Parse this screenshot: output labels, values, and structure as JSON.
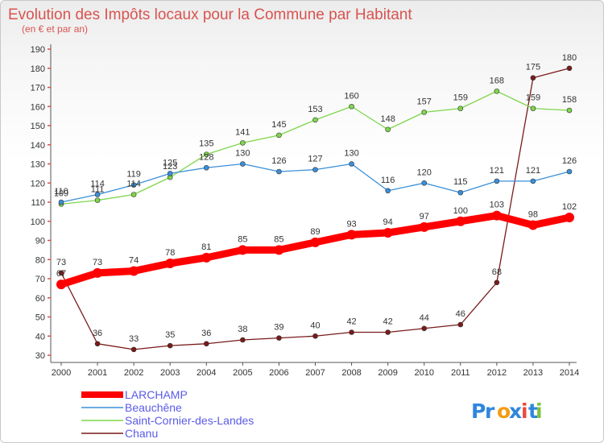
{
  "chart_data": {
    "type": "line",
    "title": "Evolution des Impôts locaux pour la Commune par Habitant",
    "subtitle": "(en € et par an)",
    "x": [
      "2000",
      "2001",
      "2002",
      "2003",
      "2004",
      "2005",
      "2006",
      "2007",
      "2008",
      "2009",
      "2010",
      "2011",
      "2012",
      "2013",
      "2014"
    ],
    "ylim": [
      30,
      190
    ],
    "yticks": [
      30,
      40,
      50,
      60,
      70,
      80,
      90,
      100,
      110,
      120,
      130,
      140,
      150,
      160,
      170,
      180,
      190
    ],
    "grid": false,
    "legend_position": "bottom-left",
    "series": [
      {
        "name": "LARCHAMP",
        "color": "#ff0000",
        "values": [
          67,
          73,
          74,
          78,
          81,
          85,
          85,
          89,
          93,
          94,
          97,
          100,
          103,
          98,
          102
        ]
      },
      {
        "name": "Beauchêne",
        "color": "#3a8fd9",
        "values": [
          110,
          114,
          119,
          125,
          128,
          130,
          126,
          127,
          130,
          116,
          120,
          115,
          121,
          121,
          126
        ]
      },
      {
        "name": "Saint-Cornier-des-Landes",
        "color": "#7ed64a",
        "values": [
          109,
          111,
          114,
          123,
          135,
          141,
          145,
          153,
          160,
          148,
          157,
          159,
          168,
          159,
          158
        ]
      },
      {
        "name": "Chanu",
        "color": "#7a1a1a",
        "values": [
          73,
          36,
          33,
          35,
          36,
          38,
          39,
          40,
          42,
          42,
          44,
          46,
          68,
          175,
          180
        ]
      }
    ]
  },
  "brand": {
    "logo_text": "Proxiti"
  }
}
